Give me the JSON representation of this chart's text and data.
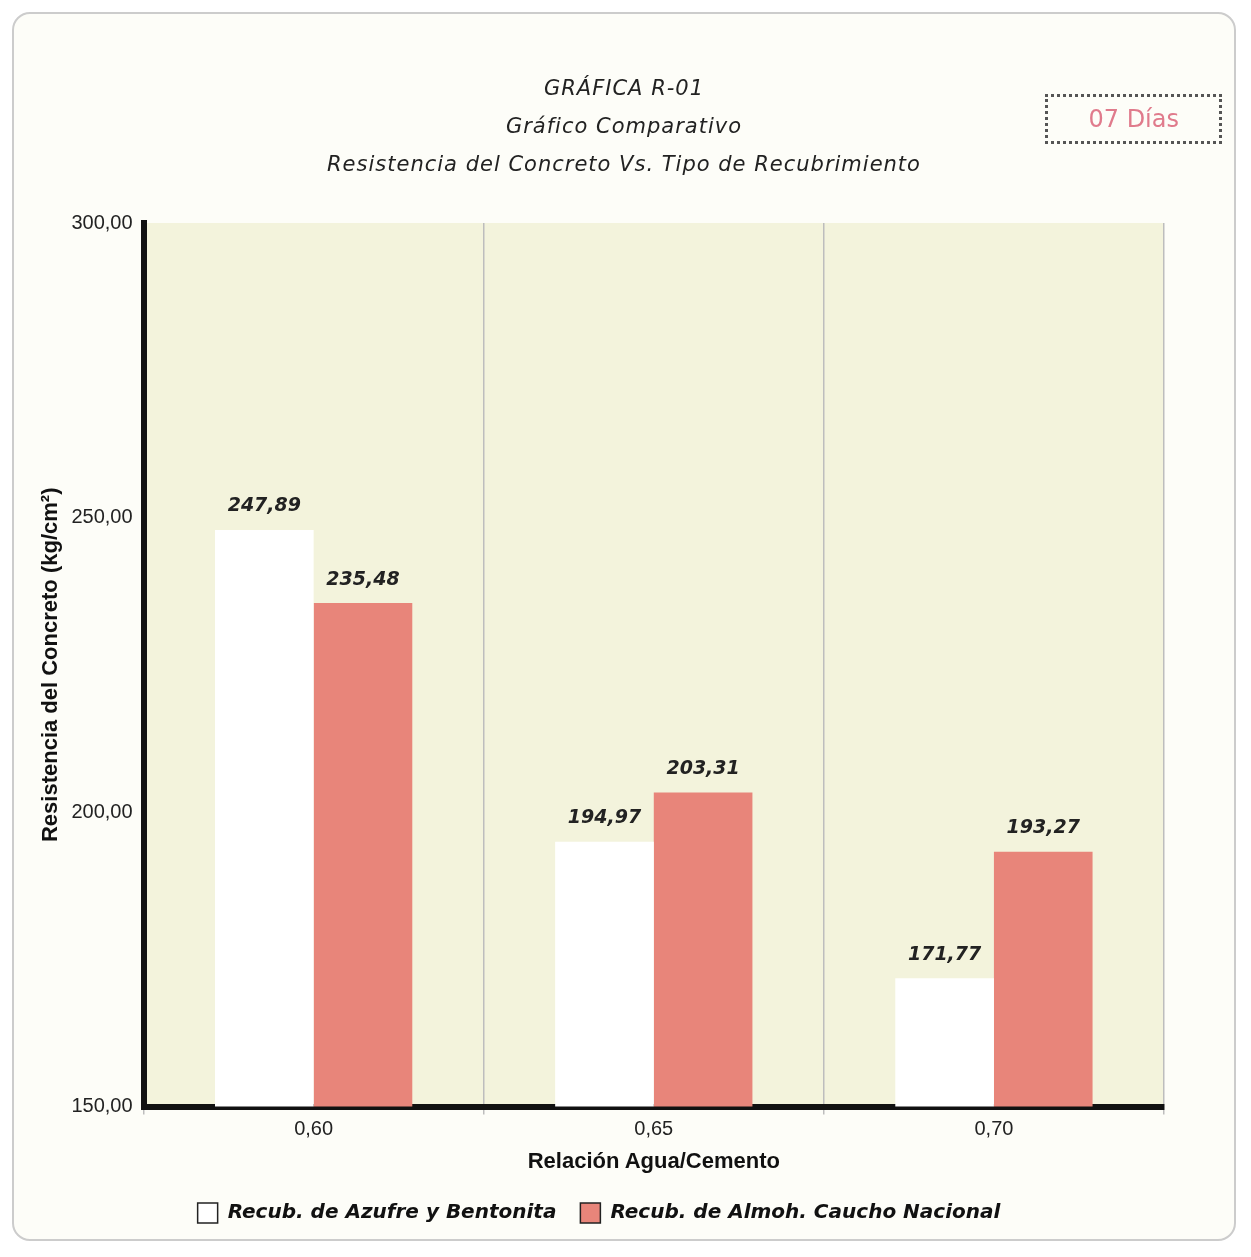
{
  "chart_data": {
    "type": "bar",
    "title": "GRÁFICA R-01",
    "subtitle": "Gráfico Comparativo",
    "annotations": [
      "Resistencia del Concreto Vs. Tipo de Recubrimiento",
      "07 Días"
    ],
    "xlabel": "Relación Agua/Cemento",
    "ylabel": "Resistencia del Concreto (kg/cm²)",
    "categories": [
      "0,60",
      "0,65",
      "0,70"
    ],
    "series": [
      {
        "name": "Recub. de Azufre y Bentonita",
        "color": "#ffffff",
        "values": [
          247.89,
          194.97,
          171.77
        ],
        "value_labels": [
          "247,89",
          "194,97",
          "171,77"
        ]
      },
      {
        "name": "Recub. de Almoh. Caucho Nacional",
        "color": "#e8857a",
        "values": [
          235.48,
          203.31,
          193.27
        ],
        "value_labels": [
          "235,48",
          "203,31",
          "193,27"
        ]
      }
    ],
    "ylim": [
      150,
      300
    ],
    "yticks": [
      {
        "value": 150,
        "label": "150,00"
      },
      {
        "value": 200,
        "label": "200,00"
      },
      {
        "value": 250,
        "label": "250,00"
      },
      {
        "value": 300,
        "label": "300,00"
      }
    ],
    "grid": "x",
    "legend": "bottom"
  }
}
